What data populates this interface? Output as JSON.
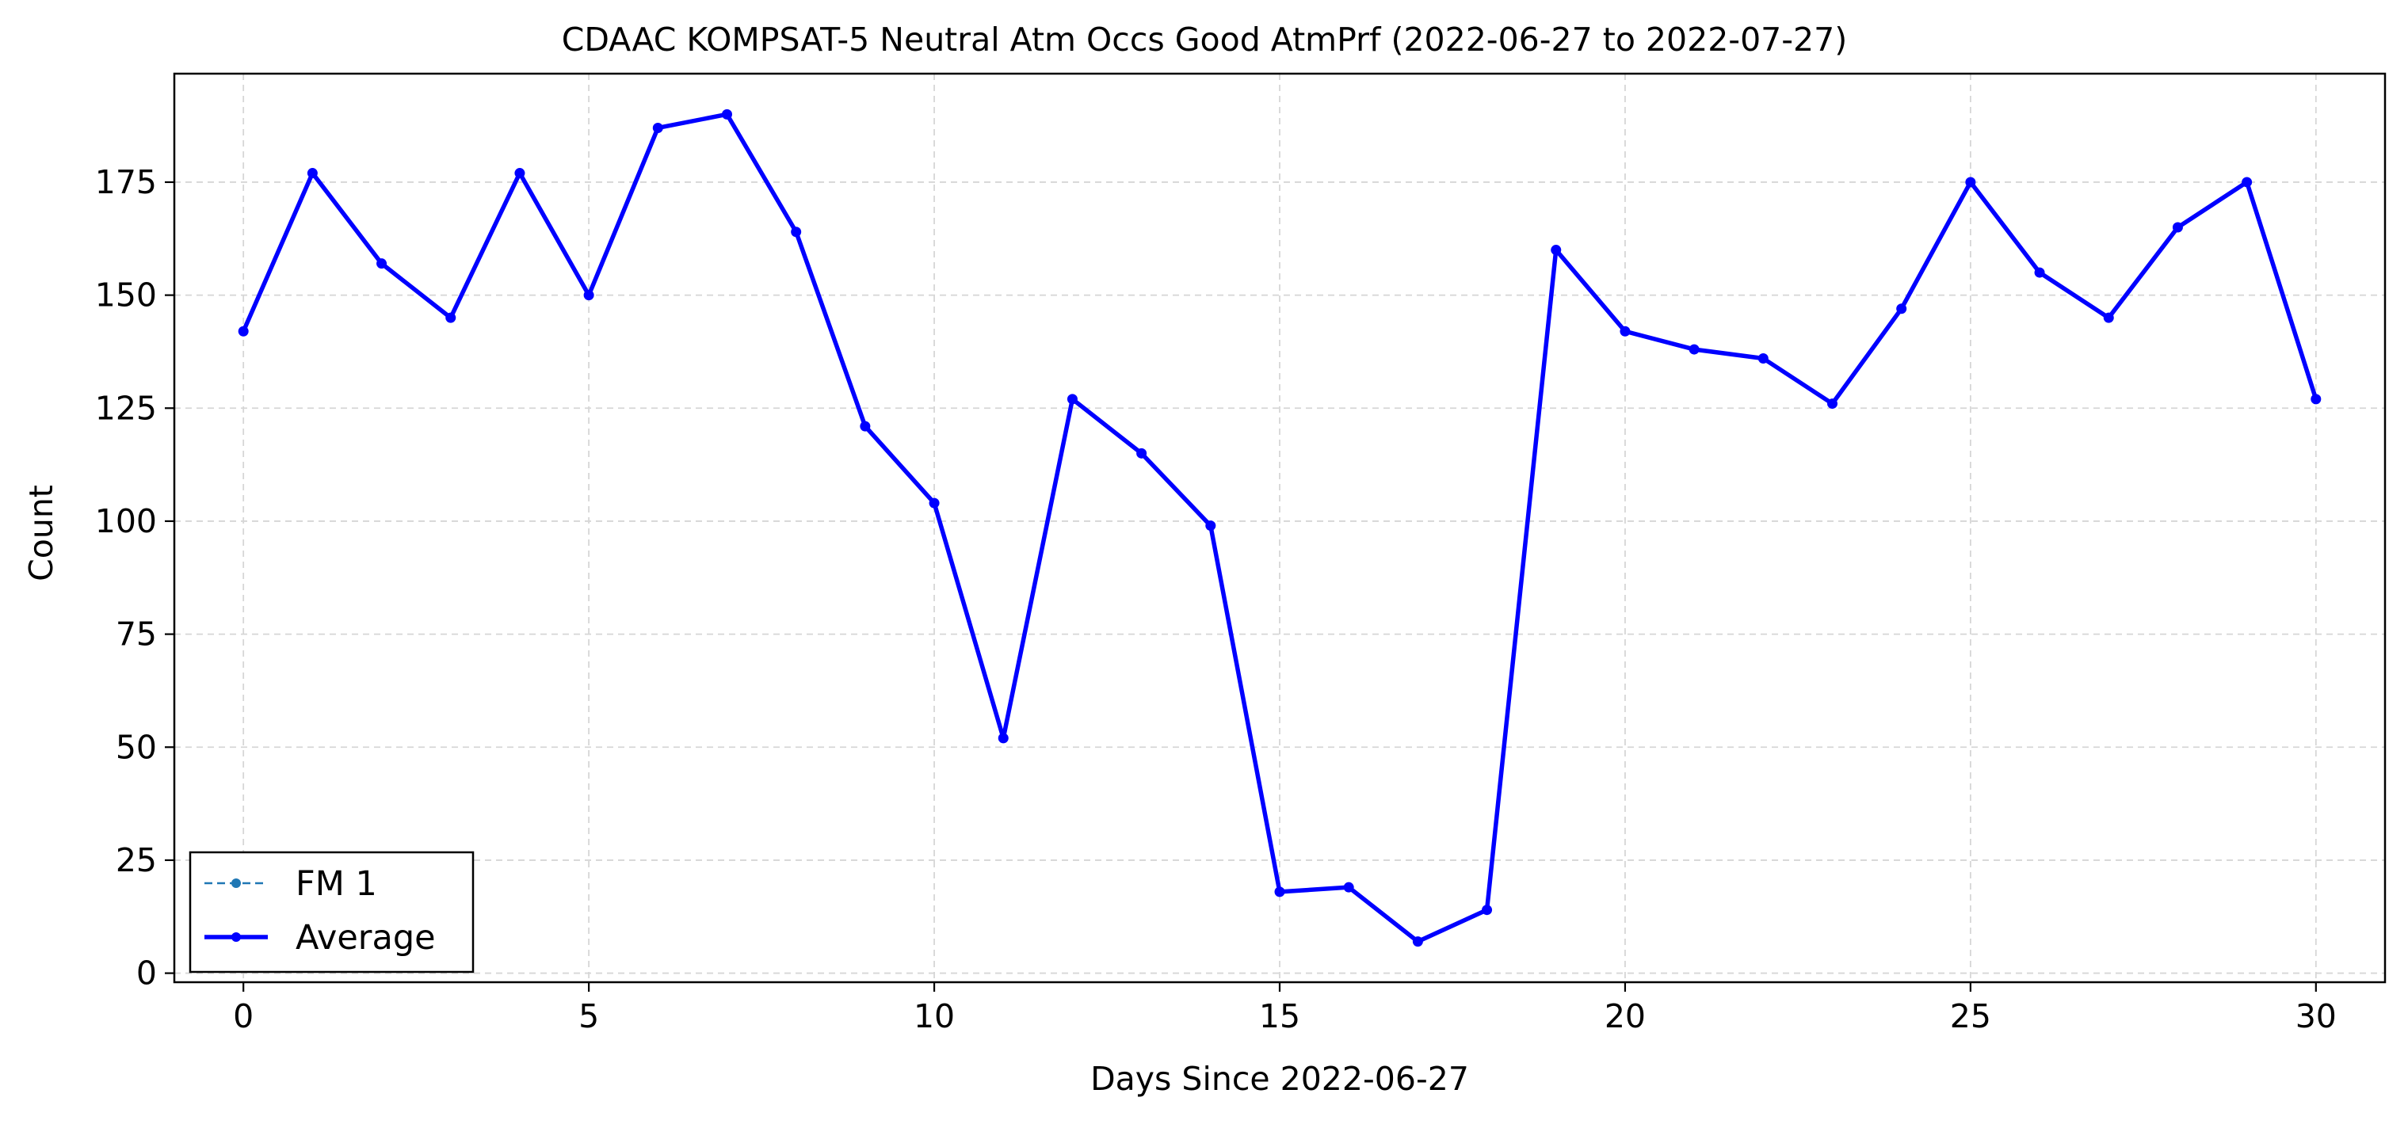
{
  "chart_data": {
    "type": "line",
    "title": "CDAAC KOMPSAT-5 Neutral Atm Occs Good AtmPrf (2022-06-27 to 2022-07-27)",
    "xlabel": "Days Since 2022-06-27",
    "ylabel": "Count",
    "xlim": [
      -1,
      31
    ],
    "ylim": [
      -2,
      199
    ],
    "x_ticks": [
      0,
      5,
      10,
      15,
      20,
      25,
      30
    ],
    "y_ticks": [
      0,
      25,
      50,
      75,
      100,
      125,
      150,
      175
    ],
    "grid": true,
    "legend_position": "lower-left",
    "x": [
      0,
      1,
      2,
      3,
      4,
      5,
      6,
      7,
      8,
      9,
      10,
      11,
      12,
      13,
      14,
      15,
      16,
      17,
      18,
      19,
      20,
      21,
      22,
      23,
      24,
      25,
      26,
      27,
      28,
      29,
      30
    ],
    "series": [
      {
        "name": "FM 1",
        "color": "#1f77b4",
        "line_style": "dashed",
        "values": [
          142,
          177,
          157,
          145,
          177,
          150,
          187,
          190,
          164,
          121,
          104,
          52,
          127,
          115,
          99,
          18,
          19,
          7,
          14,
          160,
          142,
          138,
          136,
          126,
          147,
          175,
          155,
          145,
          165,
          175,
          127
        ]
      },
      {
        "name": "Average",
        "color": "#0000ff",
        "line_style": "solid",
        "values": [
          142,
          177,
          157,
          145,
          177,
          150,
          187,
          190,
          164,
          121,
          104,
          52,
          127,
          115,
          99,
          18,
          19,
          7,
          14,
          160,
          142,
          138,
          136,
          126,
          147,
          175,
          155,
          145,
          165,
          175,
          127
        ]
      }
    ]
  }
}
